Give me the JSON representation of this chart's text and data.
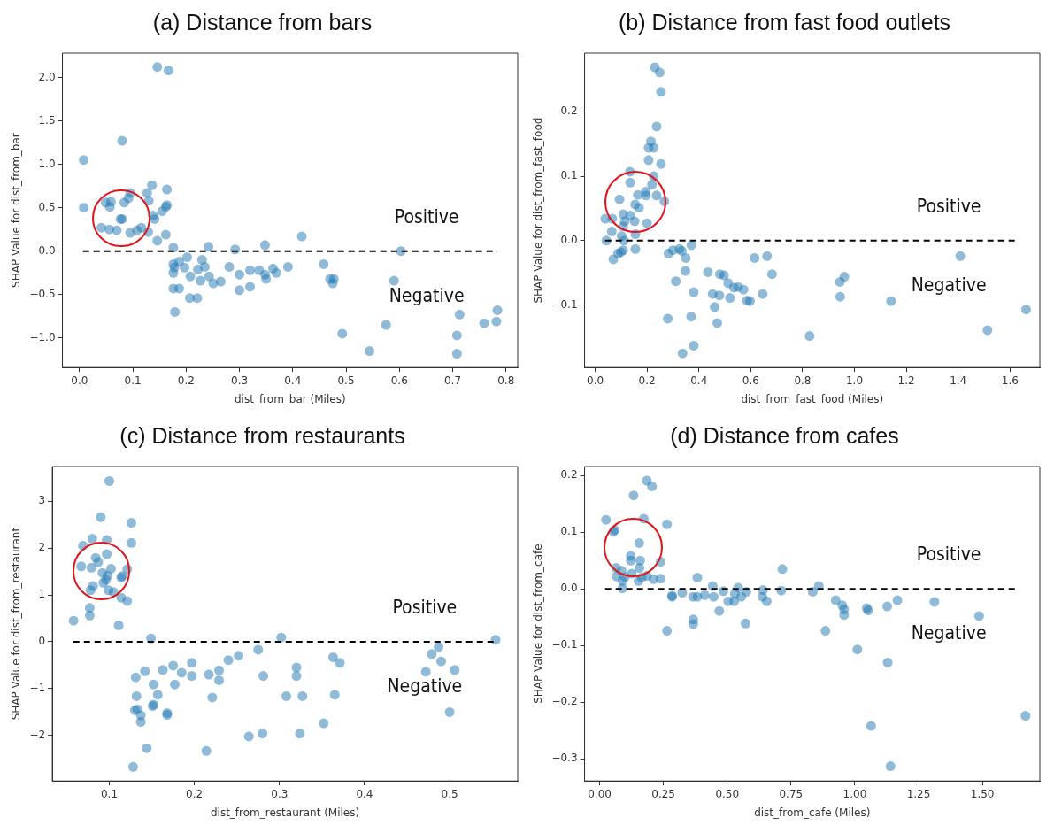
{
  "chart_data": [
    {
      "type": "scatter",
      "title": "(a) Distance from bars",
      "xlabel": "dist_from_bar (Miles)",
      "ylabel": "SHAP Value for dist_from_bar",
      "marker": "circle",
      "color": "#1f77b4",
      "xlim": [
        -0.032,
        0.822
      ],
      "ylim": [
        -1.34,
        2.28
      ],
      "xticks": [
        {
          "value": 0,
          "label": "0.0"
        },
        {
          "value": 0.1,
          "label": "0.1"
        },
        {
          "value": 0.2,
          "label": "0.2"
        },
        {
          "value": 0.3,
          "label": "0.3"
        },
        {
          "value": 0.4,
          "label": "0.4"
        },
        {
          "value": 0.5,
          "label": "0.5"
        },
        {
          "value": 0.6,
          "label": "0.6"
        },
        {
          "value": 0.7,
          "label": "0.7"
        },
        {
          "value": 0.8,
          "label": "0.8"
        }
      ],
      "yticks": [
        {
          "value": -1,
          "label": "−1.0"
        },
        {
          "value": -0.5,
          "label": "−0.5"
        },
        {
          "value": 0,
          "label": "0.0"
        },
        {
          "value": 0.5,
          "label": "0.5"
        },
        {
          "value": 1,
          "label": "1.0"
        },
        {
          "value": 1.5,
          "label": "1.5"
        },
        {
          "value": 2,
          "label": "2.0"
        }
      ],
      "x": [
        0.146,
        0.167,
        0.08,
        0.008,
        0.008,
        0.136,
        0.164,
        0.127,
        0.095,
        0.092,
        0.084,
        0.049,
        0.059,
        0.057,
        0.13,
        0.164,
        0.162,
        0.138,
        0.141,
        0.155,
        0.08,
        0.077,
        0.041,
        0.056,
        0.07,
        0.095,
        0.108,
        0.116,
        0.129,
        0.146,
        0.162,
        0.176,
        0.176,
        0.178,
        0.176,
        0.187,
        0.202,
        0.197,
        0.208,
        0.176,
        0.187,
        0.207,
        0.221,
        0.179,
        0.222,
        0.23,
        0.235,
        0.227,
        0.242,
        0.243,
        0.251,
        0.265,
        0.281,
        0.292,
        0.3,
        0.3,
        0.32,
        0.32,
        0.337,
        0.348,
        0.348,
        0.35,
        0.363,
        0.369,
        0.391,
        0.417,
        0.458,
        0.47,
        0.475,
        0.477,
        0.493,
        0.544,
        0.575,
        0.59,
        0.603,
        0.708,
        0.708,
        0.713,
        0.759,
        0.782,
        0.784
      ],
      "values": [
        2.12,
        2.08,
        1.27,
        1.05,
        0.5,
        0.76,
        0.71,
        0.67,
        0.67,
        0.61,
        0.56,
        0.56,
        0.57,
        0.51,
        0.58,
        0.53,
        0.51,
        0.41,
        0.37,
        0.46,
        0.37,
        0.37,
        0.27,
        0.25,
        0.24,
        0.21,
        0.24,
        0.27,
        0.22,
        0.12,
        0.19,
        0.04,
        -0.15,
        -0.19,
        -0.25,
        -0.12,
        -0.07,
        -0.19,
        -0.29,
        -0.43,
        -0.43,
        -0.54,
        -0.54,
        -0.7,
        -0.21,
        -0.1,
        -0.18,
        -0.34,
        0.05,
        -0.29,
        -0.37,
        -0.35,
        -0.18,
        0.02,
        -0.27,
        -0.45,
        -0.22,
        -0.41,
        -0.22,
        0.07,
        -0.27,
        -0.32,
        -0.2,
        -0.25,
        -0.18,
        0.17,
        -0.15,
        -0.32,
        -0.37,
        -0.32,
        -0.95,
        -1.15,
        -0.85,
        -0.34,
        0.0,
        -0.97,
        -1.18,
        -0.73,
        -0.83,
        -0.81,
        -0.68
      ],
      "ref_lines": [
        {
          "axis": "y",
          "value": 0,
          "color": "#000000",
          "line_style": "dashed"
        }
      ],
      "annotations": [
        "Positive",
        "Negative"
      ]
    },
    {
      "type": "scatter",
      "title": "(b) Distance from fast food outlets",
      "xlabel": "dist_from_fast_food (Miles)",
      "ylabel": "SHAP Value for dist_from_fast_food",
      "marker": "circle",
      "color": "#1f77b4",
      "xlim": [
        -0.041,
        1.715
      ],
      "ylim": [
        -0.197,
        0.291
      ],
      "xticks": [
        {
          "value": 0,
          "label": "0.0"
        },
        {
          "value": 0.2,
          "label": "0.2"
        },
        {
          "value": 0.4,
          "label": "0.4"
        },
        {
          "value": 0.6,
          "label": "0.6"
        },
        {
          "value": 0.8,
          "label": "0.8"
        },
        {
          "value": 1,
          "label": "1.0"
        },
        {
          "value": 1.2,
          "label": "1.2"
        },
        {
          "value": 1.4,
          "label": "1.4"
        },
        {
          "value": 1.6,
          "label": "1.6"
        }
      ],
      "yticks": [
        {
          "value": -0.1,
          "label": "−0.1"
        },
        {
          "value": 0,
          "label": "0.0"
        },
        {
          "value": 0.1,
          "label": "0.1"
        },
        {
          "value": 0.2,
          "label": "0.2"
        }
      ],
      "x": [
        0.23,
        0.249,
        0.254,
        0.237,
        0.215,
        0.206,
        0.226,
        0.206,
        0.254,
        0.134,
        0.226,
        0.135,
        0.219,
        0.094,
        0.165,
        0.195,
        0.196,
        0.237,
        0.267,
        0.154,
        0.169,
        0.108,
        0.135,
        0.066,
        0.039,
        0.152,
        0.114,
        0.2,
        0.108,
        0.064,
        0.155,
        0.102,
        0.043,
        0.111,
        0.155,
        0.108,
        0.099,
        0.088,
        0.07,
        0.371,
        0.283,
        0.3,
        0.325,
        0.334,
        0.349,
        0.348,
        0.311,
        0.38,
        0.37,
        0.28,
        0.337,
        0.38,
        0.435,
        0.481,
        0.497,
        0.513,
        0.453,
        0.479,
        0.52,
        0.461,
        0.471,
        0.535,
        0.551,
        0.572,
        0.586,
        0.597,
        0.615,
        0.663,
        0.682,
        0.646,
        0.827,
        0.944,
        0.961,
        0.945,
        1.141,
        1.408,
        1.513,
        1.662
      ],
      "values": [
        0.269,
        0.261,
        0.231,
        0.177,
        0.154,
        0.144,
        0.144,
        0.125,
        0.119,
        0.107,
        0.1,
        0.09,
        0.087,
        0.064,
        0.071,
        0.076,
        0.07,
        0.07,
        0.061,
        0.056,
        0.051,
        0.041,
        0.039,
        0.034,
        0.034,
        0.03,
        0.03,
        0.027,
        0.022,
        0.014,
        0.01,
        0.007,
        0.0,
        0.0,
        -0.013,
        -0.015,
        -0.018,
        -0.02,
        -0.029,
        -0.007,
        -0.02,
        -0.015,
        -0.013,
        -0.016,
        -0.027,
        -0.047,
        -0.063,
        -0.08,
        -0.118,
        -0.121,
        -0.175,
        -0.163,
        -0.049,
        -0.052,
        -0.054,
        -0.066,
        -0.083,
        -0.085,
        -0.089,
        -0.103,
        -0.128,
        -0.073,
        -0.072,
        -0.076,
        -0.093,
        -0.094,
        -0.027,
        -0.024,
        -0.052,
        -0.083,
        -0.148,
        -0.064,
        -0.056,
        -0.087,
        -0.094,
        -0.024,
        -0.139,
        -0.107
      ],
      "ref_lines": [
        {
          "axis": "y",
          "value": 0,
          "color": "#000000",
          "line_style": "dashed"
        }
      ],
      "annotations": [
        "Positive",
        "Negative"
      ]
    },
    {
      "type": "scatter",
      "title": "(c) Distance from restaurants",
      "xlabel": "dist_from_restaurant (Miles)",
      "ylabel": "SHAP Value for dist_from_restaurant",
      "marker": "circle",
      "color": "#1f77b4",
      "xlim": [
        0.033,
        0.58
      ],
      "ylim": [
        -2.97,
        3.74
      ],
      "xticks": [
        0.1,
        0.2,
        0.3,
        0.4,
        0.5
      ],
      "yticks": [
        {
          "value": -2,
          "label": "−2"
        },
        {
          "value": -1,
          "label": "−1"
        },
        0,
        1,
        2,
        3
      ],
      "x": [
        0.1,
        0.09,
        0.126,
        0.126,
        0.08,
        0.097,
        0.069,
        0.097,
        0.084,
        0.087,
        0.067,
        0.079,
        0.102,
        0.121,
        0.092,
        0.098,
        0.096,
        0.114,
        0.115,
        0.081,
        0.093,
        0.078,
        0.099,
        0.105,
        0.114,
        0.121,
        0.077,
        0.077,
        0.058,
        0.111,
        0.149,
        0.302,
        0.554,
        0.275,
        0.252,
        0.24,
        0.197,
        0.175,
        0.185,
        0.163,
        0.142,
        0.131,
        0.197,
        0.217,
        0.229,
        0.229,
        0.281,
        0.32,
        0.32,
        0.363,
        0.371,
        0.365,
        0.308,
        0.327,
        0.479,
        0.487,
        0.49,
        0.472,
        0.506,
        0.5,
        0.152,
        0.177,
        0.132,
        0.157,
        0.13,
        0.151,
        0.152,
        0.168,
        0.168,
        0.137,
        0.137,
        0.221,
        0.352,
        0.264,
        0.28,
        0.324,
        0.144,
        0.214,
        0.128,
        0.133
      ],
      "values": [
        3.43,
        2.66,
        2.54,
        2.11,
        2.2,
        2.17,
        2.05,
        1.87,
        1.79,
        1.7,
        1.61,
        1.58,
        1.56,
        1.55,
        1.47,
        1.41,
        1.32,
        1.37,
        1.4,
        1.19,
        1.26,
        1.1,
        1.1,
        1.06,
        0.94,
        0.87,
        0.72,
        0.56,
        0.45,
        0.35,
        0.07,
        0.09,
        0.04,
        -0.17,
        -0.3,
        -0.39,
        -0.45,
        -0.51,
        -0.66,
        -0.6,
        -0.63,
        -0.76,
        -0.73,
        -0.7,
        -0.61,
        -0.82,
        -0.73,
        -0.55,
        -0.73,
        -0.33,
        -0.45,
        -1.13,
        -1.16,
        -1.16,
        -0.26,
        -0.11,
        -0.42,
        -0.64,
        -0.6,
        -1.5,
        -0.91,
        -0.91,
        -1.16,
        -1.13,
        -1.46,
        -1.37,
        -1.34,
        -1.52,
        -1.56,
        -1.57,
        -1.71,
        -1.19,
        -1.74,
        -2.02,
        -1.96,
        -1.96,
        -2.27,
        -2.33,
        -2.67,
        -1.44
      ],
      "ref_lines": [
        {
          "axis": "y",
          "value": 0,
          "color": "#000000",
          "line_style": "dashed"
        }
      ],
      "annotations": [
        "Positive",
        "Negative"
      ]
    },
    {
      "type": "scatter",
      "title": "(d) Distance from cafes",
      "xlabel": "dist_from_cafe (Miles)",
      "ylabel": "SHAP Value for dist_from_cafe",
      "marker": "circle",
      "color": "#1f77b4",
      "xlim": [
        -0.059,
        1.725
      ],
      "ylim": [
        -0.339,
        0.216
      ],
      "xticks": [
        {
          "value": 0,
          "label": "0.00"
        },
        {
          "value": 0.25,
          "label": "0.25"
        },
        {
          "value": 0.5,
          "label": "0.50"
        },
        {
          "value": 0.75,
          "label": "0.75"
        },
        {
          "value": 1,
          "label": "1.00"
        },
        {
          "value": 1.25,
          "label": "1.25"
        },
        {
          "value": 1.5,
          "label": "1.50"
        }
      ],
      "yticks": [
        {
          "value": -0.3,
          "label": "−0.3"
        },
        {
          "value": -0.2,
          "label": "−0.2"
        },
        {
          "value": -0.1,
          "label": "−0.1"
        },
        {
          "value": 0,
          "label": "0.0"
        },
        {
          "value": 0.1,
          "label": "0.1"
        },
        {
          "value": 0.2,
          "label": "0.2"
        }
      ],
      "x": [
        0.185,
        0.205,
        0.133,
        0.025,
        0.173,
        0.264,
        0.059,
        0.054,
        0.155,
        0.122,
        0.159,
        0.122,
        0.239,
        0.065,
        0.086,
        0.126,
        0.156,
        0.066,
        0.099,
        0.185,
        0.211,
        0.239,
        0.089,
        0.152,
        0.165,
        0.089,
        0.716,
        0.383,
        0.443,
        0.859,
        0.543,
        0.64,
        0.485,
        0.575,
        0.712,
        0.835,
        0.324,
        0.284,
        0.284,
        0.366,
        0.383,
        0.412,
        0.447,
        0.53,
        0.555,
        0.638,
        0.504,
        0.527,
        0.655,
        0.469,
        0.367,
        0.367,
        0.572,
        0.264,
        0.925,
        0.951,
        0.958,
        0.958,
        0.885,
        1.047,
        1.052,
        1.127,
        1.167,
        1.312,
        1.487,
        1.01,
        1.129,
        1.064,
        1.14,
        1.669
      ],
      "values": [
        0.191,
        0.181,
        0.165,
        0.122,
        0.124,
        0.114,
        0.104,
        0.101,
        0.081,
        0.058,
        0.05,
        0.05,
        0.048,
        0.037,
        0.032,
        0.027,
        0.037,
        0.022,
        0.021,
        0.023,
        0.017,
        0.018,
        0.014,
        0.014,
        0.02,
        0.001,
        0.035,
        0.02,
        0.005,
        0.005,
        0.002,
        -0.002,
        -0.004,
        -0.005,
        -0.003,
        -0.005,
        -0.007,
        -0.012,
        -0.014,
        -0.014,
        -0.014,
        -0.011,
        -0.014,
        -0.009,
        -0.014,
        -0.014,
        -0.022,
        -0.022,
        -0.022,
        -0.039,
        -0.054,
        -0.062,
        -0.061,
        -0.074,
        -0.02,
        -0.029,
        -0.036,
        -0.046,
        -0.074,
        -0.034,
        -0.038,
        -0.031,
        -0.02,
        -0.023,
        -0.048,
        -0.107,
        -0.13,
        -0.242,
        -0.313,
        -0.224
      ],
      "ref_lines": [
        {
          "axis": "y",
          "value": 0,
          "color": "#000000",
          "line_style": "dashed"
        }
      ],
      "annotations": [
        "Positive",
        "Negative"
      ]
    }
  ]
}
